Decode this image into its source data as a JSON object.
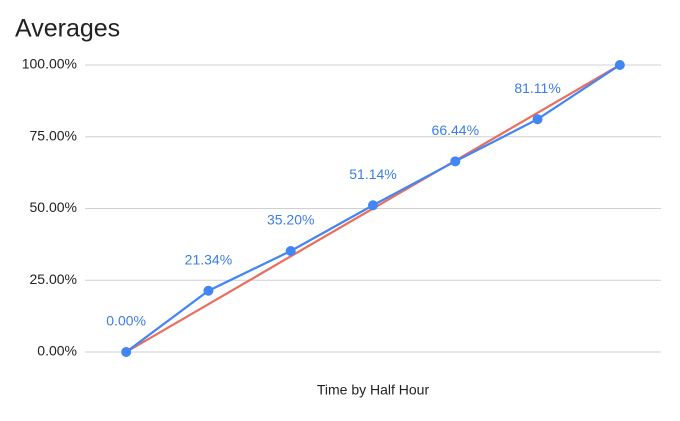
{
  "chart_data": {
    "type": "line",
    "title": "Averages",
    "x_label": "Time by Half Hour",
    "categories": [
      null,
      null,
      null,
      null,
      null,
      null,
      null
    ],
    "series": [
      {
        "color": "#4285f4",
        "values": [
          0,
          21.34,
          35.2,
          51.14,
          66.44,
          81.11,
          100
        ],
        "value_labels": [
          "0.00%",
          "21.34%",
          "35.20%",
          "51.14%",
          "66.44%",
          "81.11%",
          null
        ],
        "markers": true
      },
      {
        "color": "#ea6e5d",
        "values": [
          0,
          16.67,
          33.33,
          50,
          66.67,
          83.33,
          100
        ],
        "markers": false
      }
    ],
    "ylim": [
      0,
      100
    ],
    "yticks": [
      {
        "value": 0,
        "label": "0.00%"
      },
      {
        "value": 25,
        "label": "25.00%"
      },
      {
        "value": 50,
        "label": "50.00%"
      },
      {
        "value": 75,
        "label": "75.00%"
      },
      {
        "value": 100,
        "label": "100.00%"
      }
    ],
    "grid": true
  }
}
